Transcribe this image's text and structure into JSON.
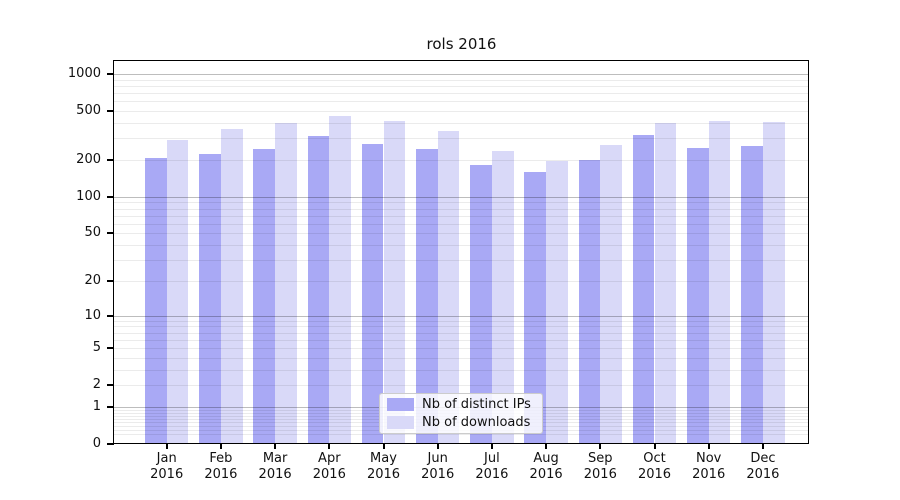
{
  "chart_data": {
    "type": "bar",
    "title": "rols 2016",
    "xlabel": "",
    "ylabel": "",
    "year": "2016",
    "categories": [
      "Jan",
      "Feb",
      "Mar",
      "Apr",
      "May",
      "Jun",
      "Jul",
      "Aug",
      "Sep",
      "Oct",
      "Nov",
      "Dec"
    ],
    "series": [
      {
        "name": "Nb of distinct IPs",
        "color": "#a9a9f5",
        "values": [
          208,
          222,
          247,
          312,
          272,
          247,
          183,
          160,
          200,
          317,
          252,
          260
        ]
      },
      {
        "name": "Nb of downloads",
        "color": "#d9d9f8",
        "values": [
          290,
          358,
          403,
          455,
          418,
          345,
          238,
          197,
          267,
          400,
          418,
          408
        ]
      }
    ],
    "yscale": "log1p",
    "y_ticks": [
      0,
      1,
      2,
      5,
      10,
      20,
      50,
      100,
      200,
      500,
      1000
    ],
    "ylim": [
      0,
      1275
    ],
    "grid": "horizontal",
    "legend_position": "lower center"
  },
  "colors": {
    "major_gridline": "rgba(0,0,0,0.26)",
    "minor_gridline": "rgba(0,0,0,0.08)",
    "spine": "#000000",
    "background": "#ffffff"
  }
}
